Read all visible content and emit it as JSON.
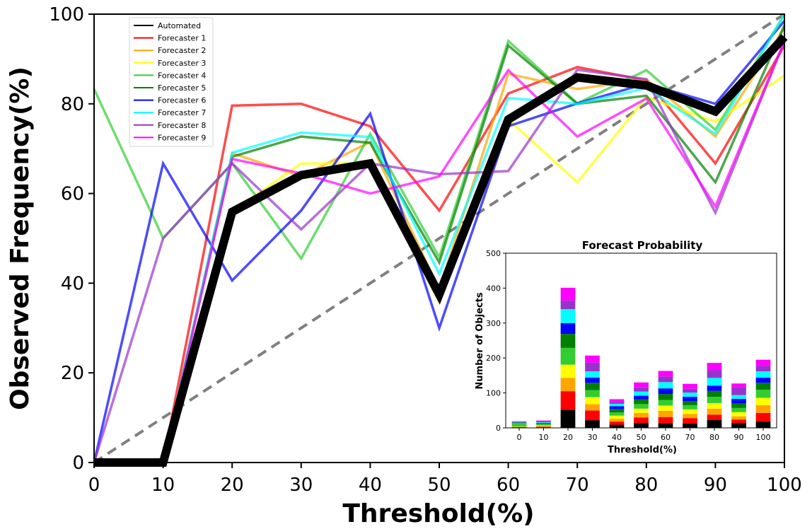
{
  "chart_data": [
    {
      "type": "line",
      "title": "",
      "xlabel": "Threshold(%)",
      "ylabel": "Observed Frequency(%)",
      "xlim": [
        0,
        100
      ],
      "ylim": [
        0,
        100
      ],
      "grid": false,
      "legend_position": "upper-left",
      "x": [
        0,
        10,
        20,
        30,
        40,
        50,
        60,
        70,
        80,
        90,
        100
      ],
      "xticks": [
        "0",
        "10",
        "20",
        "30",
        "40",
        "50",
        "60",
        "70",
        "80",
        "90",
        "100"
      ],
      "yticks": [
        "0",
        "20",
        "40",
        "60",
        "80",
        "100"
      ],
      "reference_line": {
        "x": [
          0,
          100
        ],
        "y": [
          0,
          100
        ],
        "color": "#808080",
        "style": "dashed"
      },
      "series": [
        {
          "name": "Forecaster 1",
          "color": "#ff0000",
          "values": [
            0,
            0,
            79.6,
            80,
            75,
            56.2,
            82.3,
            88.2,
            85.2,
            66.7,
            93
          ]
        },
        {
          "name": "Forecaster 2",
          "color": "#ffa500",
          "values": [
            0,
            0,
            69,
            63.8,
            71.5,
            38.5,
            86.7,
            83.3,
            85.5,
            72.7,
            97
          ]
        },
        {
          "name": "Forecaster 3",
          "color": "#ffff00",
          "values": [
            0,
            0,
            56,
            66.7,
            66.7,
            35.7,
            76.5,
            62.5,
            81.5,
            76,
            86.3
          ]
        },
        {
          "name": "Forecaster 4",
          "color": "#32cd32",
          "values": [
            83.3,
            50,
            66.7,
            45.5,
            73.3,
            45.8,
            94,
            80.1,
            87.5,
            74.2,
            100
          ]
        },
        {
          "name": "Forecaster 5",
          "color": "#008000",
          "values": [
            0,
            0,
            68.2,
            72.7,
            71.3,
            44.6,
            93,
            80,
            81.8,
            62.5,
            97.5
          ]
        },
        {
          "name": "Forecaster 6",
          "color": "#0000ff",
          "values": [
            0,
            66.7,
            40.6,
            56.2,
            77.8,
            30,
            75,
            80.1,
            84.5,
            80,
            98.5
          ]
        },
        {
          "name": "Forecaster 7",
          "color": "#00ffff",
          "values": [
            0,
            0,
            69.1,
            73.6,
            72.6,
            42.1,
            81.3,
            80,
            83.5,
            73.3,
            100
          ]
        },
        {
          "name": "Forecaster 8",
          "color": "#9932cc",
          "values": [
            0,
            50,
            66.7,
            52,
            66.7,
            64.3,
            65,
            87.6,
            85.5,
            55.7,
            94
          ]
        },
        {
          "name": "Forecaster 9",
          "color": "#ff00ff",
          "values": [
            0,
            0,
            67.7,
            64.5,
            60,
            63.8,
            87.5,
            72.7,
            81.2,
            57.1,
            94
          ]
        },
        {
          "name": "Automated",
          "color": "#000000",
          "values": [
            0,
            0,
            55.9,
            64.1,
            66.7,
            37.5,
            76.5,
            85.9,
            84.1,
            78.3,
            94.9
          ]
        }
      ]
    },
    {
      "type": "bar",
      "stacked": true,
      "title": "Forecast Probability",
      "xlabel": "Threshold(%)",
      "ylabel": "Number of Objects",
      "ylim": [
        0,
        500
      ],
      "categories": [
        "0",
        "10",
        "20",
        "30",
        "40",
        "50",
        "60",
        "70",
        "80",
        "90",
        "100"
      ],
      "yticks": [
        "0",
        "100",
        "200",
        "300",
        "400",
        "500"
      ],
      "series": [
        {
          "name": "Automated",
          "color": "#000000",
          "values": [
            1,
            1,
            52,
            22,
            9,
            14,
            13,
            12,
            23,
            14,
            18
          ]
        },
        {
          "name": "Forecaster 1",
          "color": "#ff0000",
          "values": [
            1,
            2,
            53,
            28,
            9,
            16,
            18,
            16,
            15,
            10,
            25
          ]
        },
        {
          "name": "Forecaster 2",
          "color": "#ffa500",
          "values": [
            1,
            2,
            38,
            18,
            8,
            13,
            18,
            12,
            17,
            9,
            22
          ]
        },
        {
          "name": "Forecaster 3",
          "color": "#ffff00",
          "values": [
            1,
            2,
            38,
            20,
            9,
            12,
            15,
            13,
            16,
            12,
            21
          ]
        },
        {
          "name": "Forecaster 4",
          "color": "#32cd32",
          "values": [
            10,
            4,
            48,
            20,
            9,
            13,
            16,
            12,
            18,
            12,
            23
          ]
        },
        {
          "name": "Forecaster 5",
          "color": "#008000",
          "values": [
            1,
            2,
            40,
            21,
            10,
            14,
            17,
            12,
            17,
            13,
            20
          ]
        },
        {
          "name": "Forecaster 6",
          "color": "#0000ff",
          "values": [
            1,
            1,
            31,
            15,
            8,
            10,
            16,
            12,
            15,
            13,
            15
          ]
        },
        {
          "name": "Forecaster 7",
          "color": "#00ffff",
          "values": [
            1,
            2,
            40,
            18,
            7,
            12,
            18,
            12,
            22,
            11,
            18
          ]
        },
        {
          "name": "Forecaster 8",
          "color": "#9932cc",
          "values": [
            1,
            2,
            25,
            25,
            5,
            12,
            16,
            11,
            22,
            23,
            15
          ]
        },
        {
          "name": "Forecaster 9",
          "color": "#ff00ff",
          "values": [
            1,
            3,
            36,
            20,
            8,
            14,
            16,
            14,
            21,
            10,
            18
          ]
        }
      ]
    }
  ]
}
